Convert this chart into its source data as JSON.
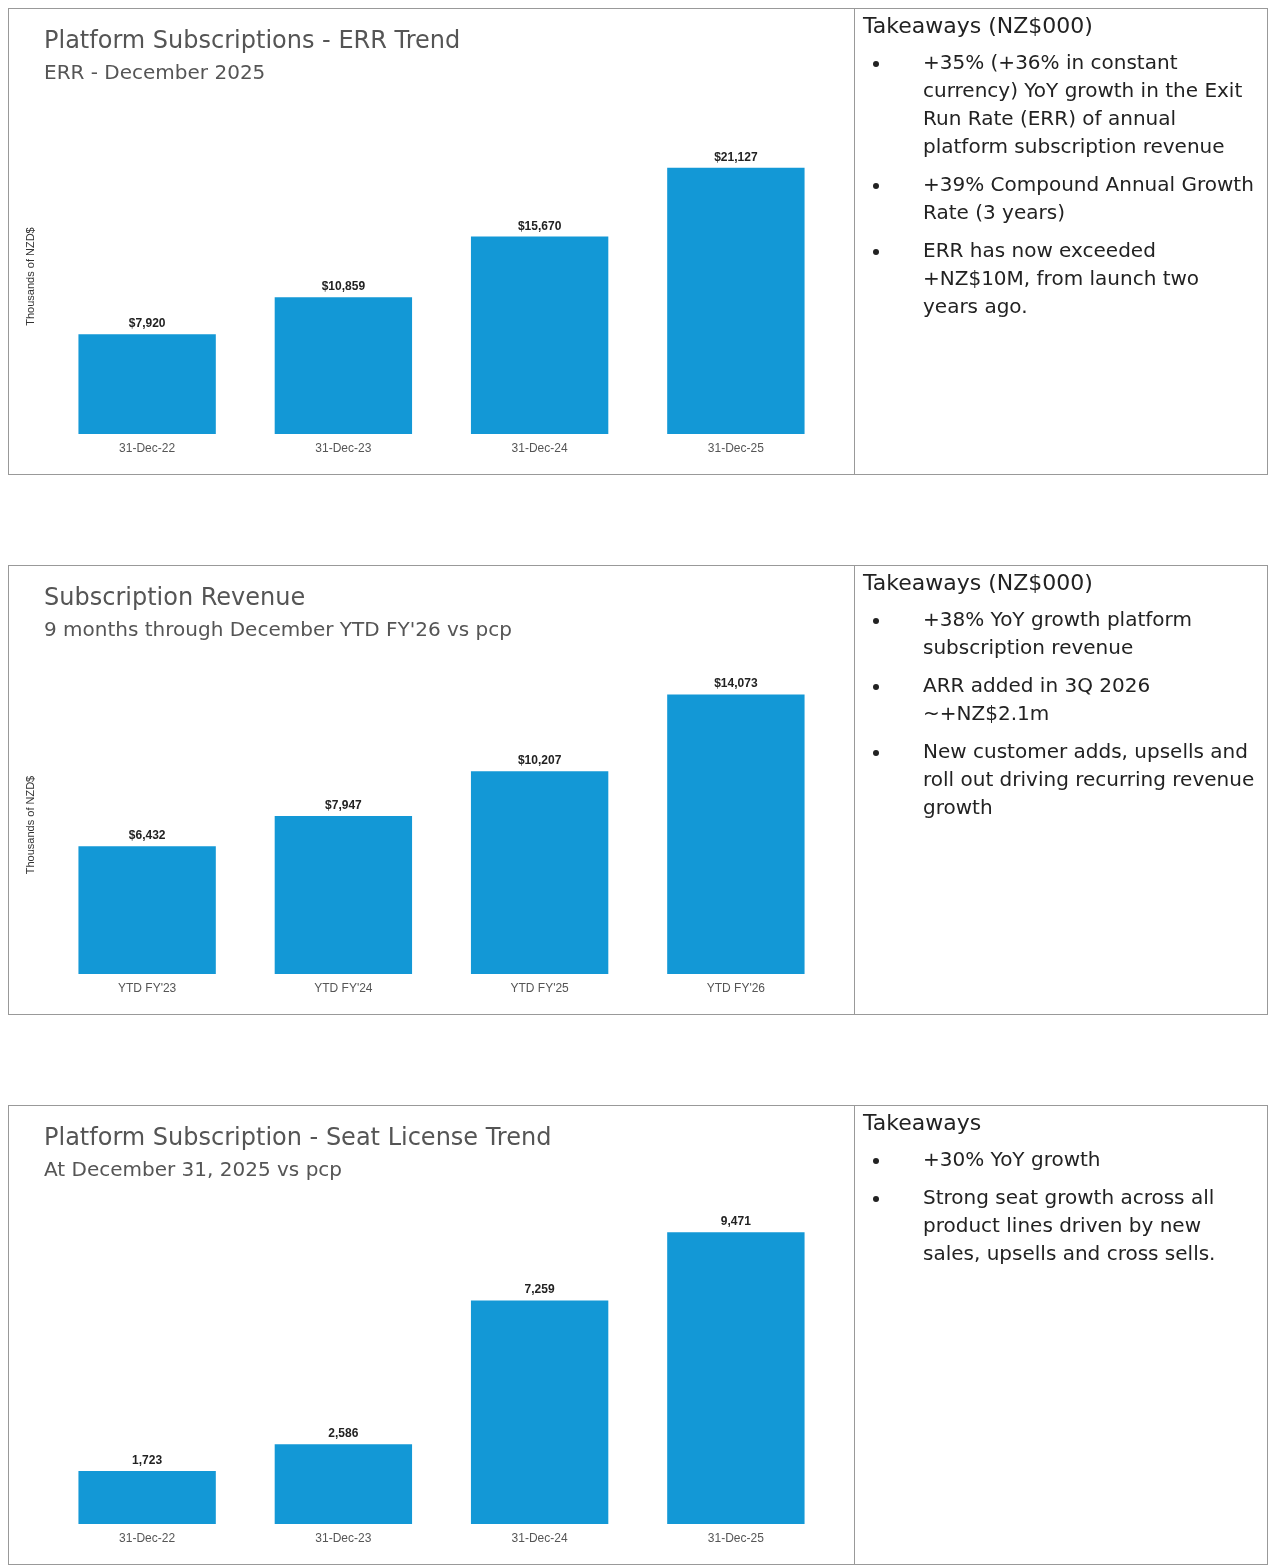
{
  "chart_data": [
    {
      "type": "bar",
      "title": "Platform Subscriptions - ERR Trend",
      "subtitle": "ERR - December 2025",
      "ylabel": "Thousands of NZD$",
      "categories": [
        "31-Dec-22",
        "31-Dec-23",
        "31-Dec-24",
        "31-Dec-25"
      ],
      "values": [
        7920,
        10859,
        15670,
        21127
      ],
      "value_labels": [
        "$7,920",
        "$10,859",
        "$15,670",
        "$21,127"
      ],
      "color": "#1398d6",
      "annotations": [
        "Takeaways (NZ$000)",
        "+35% (+36% in constant currency) YoY growth in the Exit Run Rate (ERR) of annual platform subscription revenue",
        "+39% Compound Annual Growth Rate (3 years)",
        "ERR has now exceeded +NZ$10M, from launch two years ago."
      ]
    },
    {
      "type": "bar",
      "title": "Subscription Revenue",
      "subtitle": "9 months through December YTD FY'26 vs pcp",
      "ylabel": "Thousands of NZD$",
      "categories": [
        "YTD FY'23",
        "YTD FY'24",
        "YTD FY'25",
        "YTD FY'26"
      ],
      "values": [
        6432,
        7947,
        10207,
        14073
      ],
      "value_labels": [
        "$6,432",
        "$7,947",
        "$10,207",
        "$14,073"
      ],
      "color": "#1398d6",
      "annotations": [
        "Takeaways (NZ$000)",
        "+38% YoY growth platform subscription revenue",
        "ARR added in 3Q 2026 ~+NZ$2.1m",
        "New customer adds, upsells and roll out driving recurring revenue growth"
      ]
    },
    {
      "type": "bar",
      "title": "Platform Subscription - Seat License Trend",
      "subtitle": "At December 31, 2025 vs pcp",
      "categories": [
        "31-Dec-22",
        "31-Dec-23",
        "31-Dec-24",
        "31-Dec-25"
      ],
      "values": [
        1723,
        2586,
        7259,
        9471
      ],
      "value_labels": [
        "1,723",
        "2,586",
        "7,259",
        "9,471"
      ],
      "color": "#1398d6",
      "annotations": [
        "Takeaways",
        "+30% YoY growth",
        "Strong seat growth across all product lines driven by new sales, upsells and cross sells."
      ]
    }
  ]
}
